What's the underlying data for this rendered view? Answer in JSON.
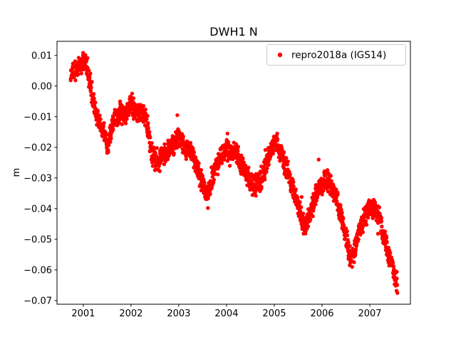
{
  "chart_data": {
    "type": "scatter",
    "title": "DWH1 N",
    "xlabel": "",
    "ylabel": "m",
    "grid": false,
    "legend_position": "upper right",
    "legend": [
      {
        "label": "repro2018a (IGS14)",
        "color": "#ff0000",
        "marker": "dot"
      }
    ],
    "xlim": [
      2000.45,
      2007.85
    ],
    "ylim": [
      -0.0712,
      0.0146
    ],
    "xticks": {
      "values": [
        2001,
        2002,
        2003,
        2004,
        2005,
        2006,
        2007
      ],
      "labels": [
        "2001",
        "2002",
        "2003",
        "2004",
        "2005",
        "2006",
        "2007"
      ]
    },
    "yticks": {
      "values": [
        0.01,
        0.0,
        -0.01,
        -0.02,
        -0.03,
        -0.04,
        -0.05,
        -0.06,
        -0.07
      ],
      "labels": [
        "0.01",
        "0.00",
        "−0.01",
        "−0.02",
        "−0.03",
        "−0.04",
        "−0.05",
        "−0.06",
        "−0.07"
      ]
    },
    "series": [
      {
        "name": "repro2018a (IGS14)",
        "color": "#ff0000",
        "marker_radius": 2.7,
        "band_halfwidth": 0.0028,
        "anchor_points": [
          [
            2000.74,
            0.0035
          ],
          [
            2000.78,
            0.005
          ],
          [
            2000.82,
            0.0045
          ],
          [
            2000.86,
            0.0055
          ],
          [
            2000.9,
            0.006
          ],
          [
            2000.95,
            0.007
          ],
          [
            2001.0,
            0.0085
          ],
          [
            2001.04,
            0.009
          ],
          [
            2001.08,
            0.006
          ],
          [
            2001.12,
            0.0025
          ],
          [
            2001.16,
            -0.0005
          ],
          [
            2001.2,
            -0.004
          ],
          [
            2001.25,
            -0.008
          ],
          [
            2001.3,
            -0.0105
          ],
          [
            2001.35,
            -0.0125
          ],
          [
            2001.4,
            -0.0135
          ],
          [
            2001.45,
            -0.016
          ],
          [
            2001.5,
            -0.0185
          ],
          [
            2001.53,
            -0.0195
          ],
          [
            2001.56,
            -0.016
          ],
          [
            2001.6,
            -0.0125
          ],
          [
            2001.65,
            -0.011
          ],
          [
            2001.7,
            -0.01
          ],
          [
            2001.75,
            -0.009
          ],
          [
            2001.8,
            -0.0085
          ],
          [
            2001.85,
            -0.0095
          ],
          [
            2001.9,
            -0.0095
          ],
          [
            2001.95,
            -0.007
          ],
          [
            2002.0,
            -0.0055
          ],
          [
            2002.05,
            -0.0065
          ],
          [
            2002.1,
            -0.008
          ],
          [
            2002.15,
            -0.0095
          ],
          [
            2002.2,
            -0.009
          ],
          [
            2002.25,
            -0.0085
          ],
          [
            2002.3,
            -0.0105
          ],
          [
            2002.35,
            -0.013
          ],
          [
            2002.4,
            -0.019
          ],
          [
            2002.45,
            -0.022
          ],
          [
            2002.5,
            -0.0245
          ],
          [
            2002.55,
            -0.026
          ],
          [
            2002.6,
            -0.024
          ],
          [
            2002.65,
            -0.0225
          ],
          [
            2002.7,
            -0.022
          ],
          [
            2002.75,
            -0.0215
          ],
          [
            2002.8,
            -0.0205
          ],
          [
            2002.85,
            -0.02
          ],
          [
            2002.9,
            -0.019
          ],
          [
            2002.95,
            -0.0175
          ],
          [
            2003.0,
            -0.017
          ],
          [
            2003.05,
            -0.018
          ],
          [
            2003.1,
            -0.019
          ],
          [
            2003.15,
            -0.02
          ],
          [
            2003.2,
            -0.021
          ],
          [
            2003.25,
            -0.0215
          ],
          [
            2003.3,
            -0.0225
          ],
          [
            2003.35,
            -0.025
          ],
          [
            2003.4,
            -0.0275
          ],
          [
            2003.45,
            -0.03
          ],
          [
            2003.5,
            -0.032
          ],
          [
            2003.55,
            -0.034
          ],
          [
            2003.6,
            -0.0355
          ],
          [
            2003.65,
            -0.033
          ],
          [
            2003.7,
            -0.03
          ],
          [
            2003.75,
            -0.027
          ],
          [
            2003.8,
            -0.0255
          ],
          [
            2003.85,
            -0.024
          ],
          [
            2003.9,
            -0.023
          ],
          [
            2003.95,
            -0.022
          ],
          [
            2004.0,
            -0.021
          ],
          [
            2004.05,
            -0.0215
          ],
          [
            2004.1,
            -0.022
          ],
          [
            2004.15,
            -0.021
          ],
          [
            2004.2,
            -0.0215
          ],
          [
            2004.25,
            -0.0235
          ],
          [
            2004.3,
            -0.0255
          ],
          [
            2004.35,
            -0.027
          ],
          [
            2004.4,
            -0.0285
          ],
          [
            2004.45,
            -0.03
          ],
          [
            2004.5,
            -0.031
          ],
          [
            2004.55,
            -0.032
          ],
          [
            2004.6,
            -0.033
          ],
          [
            2004.65,
            -0.032
          ],
          [
            2004.7,
            -0.0305
          ],
          [
            2004.75,
            -0.029
          ],
          [
            2004.8,
            -0.0275
          ],
          [
            2004.85,
            -0.025
          ],
          [
            2004.9,
            -0.023
          ],
          [
            2004.95,
            -0.0205
          ],
          [
            2005.0,
            -0.019
          ],
          [
            2005.05,
            -0.0185
          ],
          [
            2005.1,
            -0.02
          ],
          [
            2005.15,
            -0.022
          ],
          [
            2005.2,
            -0.0245
          ],
          [
            2005.25,
            -0.027
          ],
          [
            2005.3,
            -0.029
          ],
          [
            2005.35,
            -0.0315
          ],
          [
            2005.4,
            -0.034
          ],
          [
            2005.45,
            -0.0365
          ],
          [
            2005.5,
            -0.039
          ],
          [
            2005.55,
            -0.0415
          ],
          [
            2005.6,
            -0.044
          ],
          [
            2005.65,
            -0.045
          ],
          [
            2005.7,
            -0.044
          ],
          [
            2005.75,
            -0.0415
          ],
          [
            2005.8,
            -0.039
          ],
          [
            2005.85,
            -0.0365
          ],
          [
            2005.9,
            -0.0345
          ],
          [
            2005.95,
            -0.033
          ],
          [
            2006.0,
            -0.032
          ],
          [
            2006.05,
            -0.031
          ],
          [
            2006.1,
            -0.0305
          ],
          [
            2006.15,
            -0.0315
          ],
          [
            2006.2,
            -0.033
          ],
          [
            2006.25,
            -0.035
          ],
          [
            2006.3,
            -0.037
          ],
          [
            2006.35,
            -0.0395
          ],
          [
            2006.4,
            -0.042
          ],
          [
            2006.45,
            -0.0455
          ],
          [
            2006.5,
            -0.049
          ],
          [
            2006.55,
            -0.053
          ],
          [
            2006.6,
            -0.0555
          ],
          [
            2006.65,
            -0.055
          ],
          [
            2006.7,
            -0.052
          ],
          [
            2006.75,
            -0.049
          ],
          [
            2006.8,
            -0.0465
          ],
          [
            2006.85,
            -0.0445
          ],
          [
            2006.9,
            -0.0425
          ],
          [
            2006.95,
            -0.041
          ],
          [
            2007.0,
            -0.04
          ],
          [
            2007.05,
            -0.0395
          ],
          [
            2007.1,
            -0.04
          ],
          [
            2007.15,
            -0.0415
          ],
          [
            2007.2,
            -0.0435
          ],
          [
            2007.25,
            -0.046
          ],
          [
            2007.3,
            -0.049
          ],
          [
            2007.35,
            -0.052
          ],
          [
            2007.4,
            -0.055
          ],
          [
            2007.45,
            -0.058
          ],
          [
            2007.5,
            -0.061
          ],
          [
            2007.55,
            -0.064
          ],
          [
            2007.58,
            -0.0655
          ]
        ],
        "outliers": [
          [
            2001.5,
            -0.0218
          ],
          [
            2002.97,
            -0.0095
          ],
          [
            2003.61,
            -0.0398
          ],
          [
            2004.02,
            -0.0155
          ],
          [
            2005.93,
            -0.024
          ],
          [
            2006.58,
            -0.0585
          ],
          [
            2006.63,
            -0.059
          ],
          [
            2006.67,
            -0.0575
          ],
          [
            2007.56,
            -0.0668
          ]
        ]
      }
    ]
  }
}
